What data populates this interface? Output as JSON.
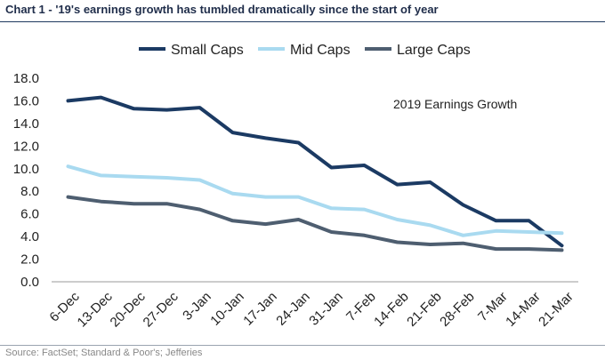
{
  "header": {
    "title": "Chart 1 - '19's earnings growth has tumbled dramatically since the start of year"
  },
  "footer": {
    "source": "Source: FactSet; Standard & Poor's; Jefferies"
  },
  "chart_data": {
    "type": "line",
    "title": "Chart 1 - '19's earnings growth has tumbled dramatically since the start of year",
    "annotation": "2019 Earnings Growth",
    "xlabel": "",
    "ylabel": "",
    "ylim": [
      0,
      18
    ],
    "yticks": [
      0,
      2,
      4,
      6,
      8,
      10,
      12,
      14,
      16,
      18
    ],
    "ytick_labels": [
      "0.0",
      "2.0",
      "4.0",
      "6.0",
      "8.0",
      "10.0",
      "12.0",
      "14.0",
      "16.0",
      "18.0"
    ],
    "grid": false,
    "legend_position": "top-center",
    "categories": [
      "6-Dec",
      "13-Dec",
      "20-Dec",
      "27-Dec",
      "3-Jan",
      "10-Jan",
      "17-Jan",
      "24-Jan",
      "31-Jan",
      "7-Feb",
      "14-Feb",
      "21-Feb",
      "28-Feb",
      "7-Mar",
      "14-Mar",
      "21-Mar"
    ],
    "series": [
      {
        "name": "Small Caps",
        "color": "#1b3a63",
        "values": [
          16.0,
          16.3,
          15.3,
          15.2,
          15.4,
          13.2,
          12.7,
          12.3,
          10.1,
          10.3,
          8.6,
          8.8,
          6.8,
          5.4,
          5.4,
          3.2
        ]
      },
      {
        "name": "Mid Caps",
        "color": "#a9daf0",
        "values": [
          10.2,
          9.4,
          9.3,
          9.2,
          9.0,
          7.8,
          7.5,
          7.5,
          6.5,
          6.4,
          5.5,
          5.0,
          4.1,
          4.5,
          4.4,
          4.3
        ]
      },
      {
        "name": "Large Caps",
        "color": "#4e5e70",
        "values": [
          7.5,
          7.1,
          6.9,
          6.9,
          6.4,
          5.4,
          5.1,
          5.5,
          4.4,
          4.1,
          3.5,
          3.3,
          3.4,
          2.9,
          2.9,
          2.8
        ]
      }
    ]
  }
}
